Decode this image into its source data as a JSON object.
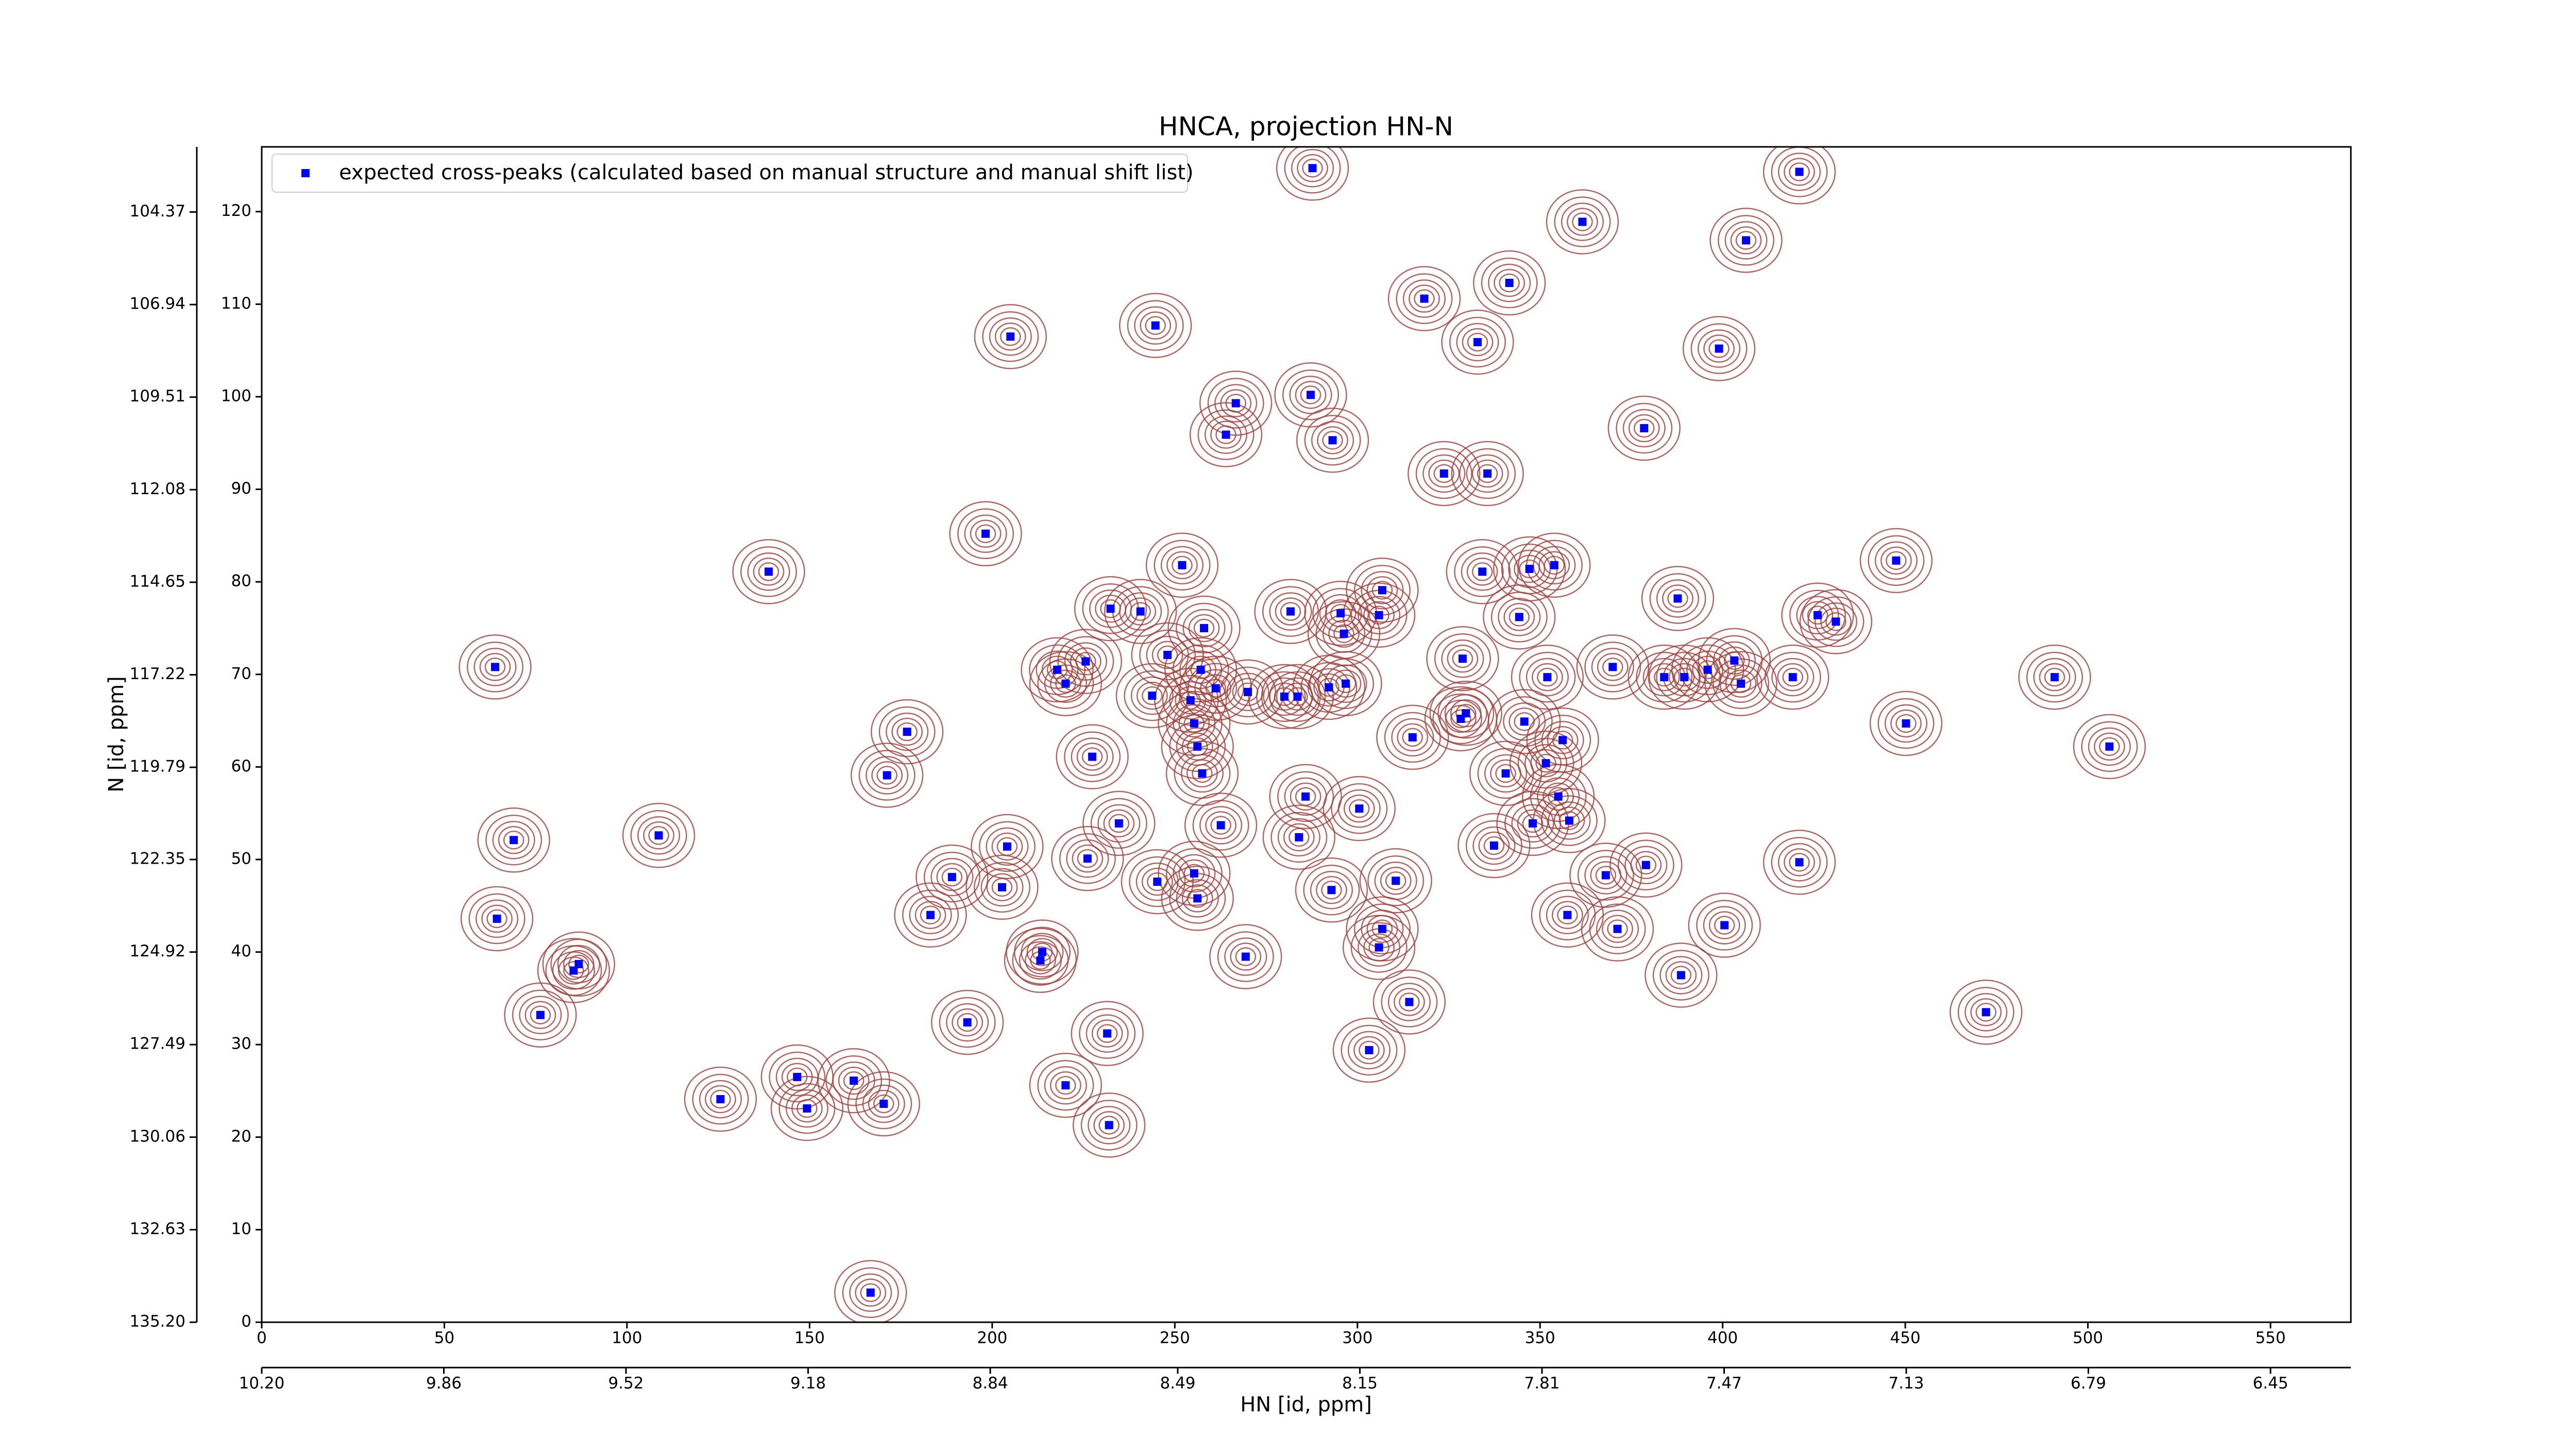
{
  "chart_data": {
    "type": "scatter",
    "title": "HNCA, projection HN-N",
    "xlabel": "HN [id, ppm]",
    "ylabel": "N [id, ppm]",
    "xlim": [
      0,
      572
    ],
    "xticks": [
      0,
      50,
      100,
      150,
      200,
      250,
      300,
      350,
      400,
      450,
      500,
      550
    ],
    "ylim": [
      0,
      127
    ],
    "yticks": [
      0,
      10,
      20,
      30,
      40,
      50,
      60,
      70,
      80,
      90,
      100,
      110,
      120
    ],
    "x2lim": [
      10.2,
      6.3
    ],
    "x2ticks": [
      {
        "value": 10.2,
        "label": "10.20"
      },
      9.86,
      9.52,
      9.18,
      8.84,
      8.49,
      8.15,
      7.81,
      7.47,
      7.13,
      6.79,
      6.45
    ],
    "y2lim": [
      135.2,
      102.56
    ],
    "y2ticks": [
      {
        "value": 135.2,
        "label": "135.20"
      },
      132.63,
      130.06,
      127.49,
      124.92,
      122.35,
      119.79,
      117.22,
      114.65,
      112.08,
      109.51,
      106.94,
      104.37
    ],
    "legend": "upper left",
    "contour_color": "#a0403a",
    "series": [
      {
        "name": "expected cross-peaks (calculated based on manual structure and manual shift list)",
        "color": "#0000ff",
        "x": [
          287.7,
          421,
          361.6,
          406.4,
          318.3,
          341.6,
          244.7,
          205,
          332.9,
          399,
          266.7,
          287.2,
          264,
          293.2,
          378.5,
          323.7,
          335.6,
          198.2,
          138.8,
          252,
          447.5,
          306.8,
          334.2,
          347.1,
          353.9,
          232.4,
          240.6,
          281.7,
          295.4,
          305.9,
          344.3,
          387.7,
          426,
          431,
          258,
          296.3,
          248,
          225.6,
          217.8,
          220.1,
          257.1,
          328.8,
          63.9,
          369.9,
          352,
          384,
          389.5,
          395.9,
          403.2,
          405,
          419.2,
          490.9,
          243.8,
          261.2,
          270,
          280,
          283.6,
          292.2,
          296.8,
          254.3,
          255.3,
          329.7,
          328.3,
          345.7,
          176.7,
          450.2,
          505.9,
          256.2,
          315.1,
          356.2,
          227.4,
          351.6,
          340.6,
          257.5,
          171.2,
          285.8,
          355,
          300.5,
          234.7,
          262.6,
          348,
          358,
          108.7,
          69,
          284,
          337.4,
          204.1,
          226.1,
          421,
          379,
          310.5,
          368,
          189,
          202.7,
          245.2,
          255.3,
          292.9,
          256.2,
          183.1,
          357.5,
          64.4,
          306.8,
          371.2,
          400.5,
          305.9,
          213.7,
          213.2,
          269.4,
          86.8,
          85.4,
          388.6,
          314.2,
          76.3,
          193.2,
          472.1,
          231.5,
          303.2,
          146.6,
          162.1,
          220.1,
          125.6,
          149.3,
          170.3,
          232,
          166.7
        ],
        "values": [
          124.7,
          124.3,
          118.9,
          116.9,
          110.6,
          112.3,
          107.7,
          106.5,
          105.9,
          105.2,
          99.3,
          100.2,
          95.9,
          95.3,
          96.6,
          91.7,
          91.7,
          85.2,
          81.1,
          81.8,
          82.3,
          79.1,
          81.1,
          81.4,
          81.8,
          77.1,
          76.8,
          76.8,
          76.6,
          76.4,
          76.2,
          78.2,
          76.4,
          75.7,
          75,
          74.4,
          72.1,
          71.4,
          70.5,
          69,
          70.5,
          71.7,
          70.8,
          70.8,
          69.7,
          69.7,
          69.7,
          70.5,
          71.5,
          69,
          69.7,
          69.7,
          67.7,
          68.5,
          68.1,
          67.6,
          67.6,
          68.6,
          69,
          67.2,
          64.7,
          65.8,
          65.2,
          64.9,
          63.8,
          64.7,
          62.2,
          62.2,
          63.2,
          62.9,
          61.1,
          60.4,
          59.3,
          59.3,
          59.1,
          56.8,
          56.8,
          55.5,
          53.9,
          53.7,
          53.9,
          54.2,
          52.6,
          52.1,
          52.4,
          51.5,
          51.4,
          50.1,
          49.7,
          49.4,
          47.7,
          48.3,
          48.1,
          47,
          47.6,
          48.5,
          46.7,
          45.8,
          44,
          44,
          43.6,
          42.5,
          42.5,
          42.9,
          40.5,
          40,
          39.1,
          39.5,
          38.7,
          38,
          37.5,
          34.6,
          33.2,
          32.4,
          33.5,
          31.2,
          29.4,
          26.5,
          26.1,
          25.6,
          24.1,
          23.1,
          23.6,
          21.3,
          3.2
        ]
      }
    ]
  }
}
